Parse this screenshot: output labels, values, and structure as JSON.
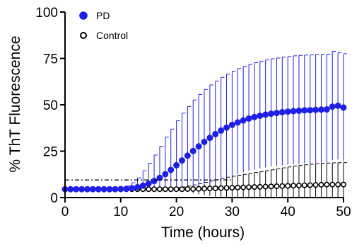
{
  "chart_data": {
    "type": "scatter",
    "title": "",
    "xlabel": "Time (hours)",
    "ylabel": "% ThT Fluorescence",
    "xlim": [
      0,
      50
    ],
    "ylim": [
      0,
      100
    ],
    "xticks": [
      0,
      10,
      20,
      30,
      40,
      50
    ],
    "yticks": [
      0,
      25,
      50,
      75,
      100
    ],
    "xtick_labels": [
      "0",
      "10",
      "20",
      "30",
      "40",
      "50"
    ],
    "ytick_labels": [
      "0",
      "25",
      "50",
      "75",
      "100"
    ],
    "grid": false,
    "legend_position": "top-left",
    "threshold_line": 9.5,
    "series": [
      {
        "name": "PD",
        "color": "#1f1fe6",
        "marker": "filled-circle",
        "x": [
          0,
          1,
          2,
          3,
          4,
          5,
          6,
          7,
          8,
          9,
          10,
          11,
          12,
          13,
          14,
          15,
          16,
          17,
          18,
          19,
          20,
          21,
          22,
          23,
          24,
          25,
          26,
          27,
          28,
          29,
          30,
          31,
          32,
          33,
          34,
          35,
          36,
          37,
          38,
          39,
          40,
          41,
          42,
          43,
          44,
          45,
          46,
          47,
          48,
          49,
          50
        ],
        "values": [
          4.5,
          4.5,
          4.5,
          4.5,
          4.5,
          4.5,
          4.5,
          4.5,
          4.5,
          4.5,
          4.6,
          4.7,
          5.0,
          5.6,
          6.4,
          7.5,
          8.9,
          10.6,
          12.6,
          14.9,
          17.4,
          20.0,
          22.6,
          25.1,
          27.6,
          30.0,
          32.2,
          34.2,
          36.1,
          37.7,
          39.2,
          40.5,
          41.6,
          42.6,
          43.4,
          44.1,
          44.7,
          45.2,
          45.6,
          46.0,
          46.3,
          46.6,
          46.8,
          47.0,
          47.1,
          47.3,
          47.4,
          47.5,
          49.0,
          49.5,
          48.5
        ],
        "error_upper": [
          0.6,
          0.6,
          0.6,
          0.6,
          0.6,
          0.6,
          0.6,
          0.6,
          0.6,
          0.6,
          0.7,
          1.5,
          3,
          5,
          8,
          11,
          14,
          17,
          20,
          22,
          24,
          25.5,
          26.5,
          27.5,
          28,
          28.3,
          28.5,
          28.6,
          28.7,
          28.8,
          28.9,
          29,
          29.1,
          29.2,
          29.3,
          29.4,
          29.5,
          29.6,
          29.6,
          29.7,
          29.7,
          29.8,
          29.8,
          29.8,
          29.8,
          29.8,
          29.8,
          29.8,
          29.8,
          28.5,
          29
        ],
        "error_lower": [
          0.6,
          0.6,
          0.6,
          0.6,
          0.6,
          0.6,
          0.6,
          0.6,
          0.6,
          0.6,
          0.7,
          0.9,
          1.2,
          1.6,
          2.3,
          3.3,
          4.6,
          6.2,
          8.2,
          10.5,
          13,
          15.5,
          17.5,
          19.5,
          21.5,
          23,
          24.5,
          25.5,
          26.5,
          27,
          27.5,
          27.8,
          28,
          28.2,
          28.3,
          28.4,
          28.5,
          28.5,
          28.6,
          28.6,
          28.7,
          28.7,
          28.7,
          28.7,
          28.8,
          28.8,
          28.8,
          28.8,
          28.8,
          29,
          28.8
        ]
      },
      {
        "name": "Control",
        "color": "#000000",
        "marker": "open-circle",
        "x": [
          0,
          1,
          2,
          3,
          4,
          5,
          6,
          7,
          8,
          9,
          10,
          11,
          12,
          13,
          14,
          15,
          16,
          17,
          18,
          19,
          20,
          21,
          22,
          23,
          24,
          25,
          26,
          27,
          28,
          29,
          30,
          31,
          32,
          33,
          34,
          35,
          36,
          37,
          38,
          39,
          40,
          41,
          42,
          43,
          44,
          45,
          46,
          47,
          48,
          49,
          50
        ],
        "values": [
          4.5,
          4.5,
          4.5,
          4.5,
          4.5,
          4.5,
          4.5,
          4.5,
          4.5,
          4.5,
          4.5,
          4.5,
          4.5,
          4.5,
          4.5,
          4.5,
          4.5,
          4.5,
          4.5,
          4.5,
          4.5,
          4.5,
          4.6,
          4.6,
          4.7,
          4.8,
          4.9,
          5.0,
          5.1,
          5.2,
          5.3,
          5.4,
          5.5,
          5.6,
          5.7,
          5.8,
          5.9,
          6.0,
          6.1,
          6.2,
          6.3,
          6.4,
          6.5,
          6.6,
          6.7,
          6.8,
          6.9,
          7.0,
          7.0,
          7.0,
          7.0
        ],
        "error_upper": [
          0.5,
          0.5,
          0.5,
          0.5,
          0.5,
          0.5,
          0.5,
          0.5,
          0.5,
          0.5,
          0.5,
          0.5,
          0.5,
          0.5,
          0.5,
          0.5,
          0.5,
          0.5,
          0.6,
          0.7,
          0.9,
          1.2,
          1.6,
          2.2,
          2.8,
          3.4,
          4.0,
          4.6,
          5.2,
          5.8,
          6.2,
          6.6,
          7.0,
          7.4,
          7.8,
          8.2,
          8.6,
          9.0,
          9.4,
          9.8,
          10.2,
          10.6,
          10.9,
          11.1,
          11.3,
          11.4,
          11.5,
          11.6,
          11.7,
          11.8,
          11.8
        ],
        "error_lower": [
          0.5,
          0.5,
          0.5,
          0.5,
          0.5,
          0.5,
          0.5,
          0.5,
          0.5,
          0.5,
          0.5,
          0.5,
          0.5,
          0.5,
          0.5,
          0.5,
          0.5,
          0.5,
          0.6,
          0.7,
          0.9,
          1.2,
          1.6,
          2.2,
          2.8,
          3.4,
          4.0,
          4.6,
          5.1,
          5.2,
          5.3,
          5.4,
          5.5,
          5.6,
          5.7,
          5.8,
          5.9,
          6.0,
          6.1,
          6.2,
          6.3,
          6.4,
          6.5,
          6.6,
          6.7,
          6.8,
          6.9,
          7.0,
          7.0,
          7.0,
          7.0
        ]
      }
    ]
  }
}
